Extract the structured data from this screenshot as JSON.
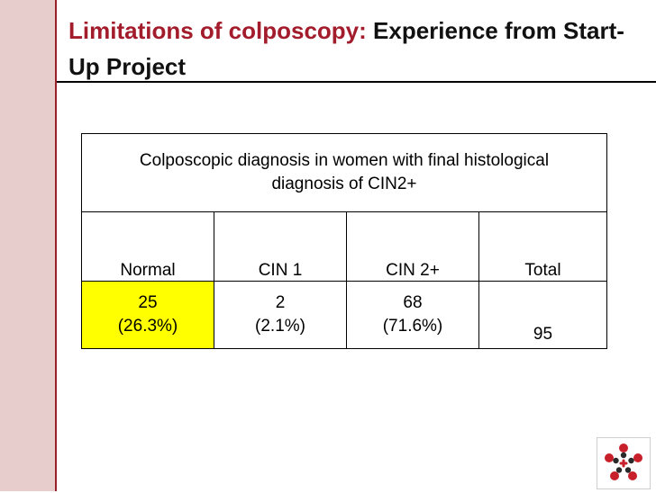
{
  "slide": {
    "title_accent": "Limitations of colposcopy:",
    "title_rest": " Experience from Start-Up Project"
  },
  "table": {
    "caption_line1": "Colposcopic diagnosis in women with final histological",
    "caption_line2": "diagnosis of CIN2+",
    "headers": [
      "Normal",
      "CIN 1",
      "CIN 2+",
      "Total"
    ],
    "counts": [
      "25",
      "2",
      "68",
      ""
    ],
    "percents": [
      "(26.3%)",
      "(2.1%)",
      "(71.6%)",
      "95"
    ],
    "highlight_color": "#ffff00"
  },
  "colors": {
    "accent": "#a31c2c",
    "sidebar": "#e8cdcd",
    "logo_red": "#c8202a",
    "logo_dark": "#2a2a2a"
  },
  "logo": {
    "icon": "organization-logo-icon"
  }
}
